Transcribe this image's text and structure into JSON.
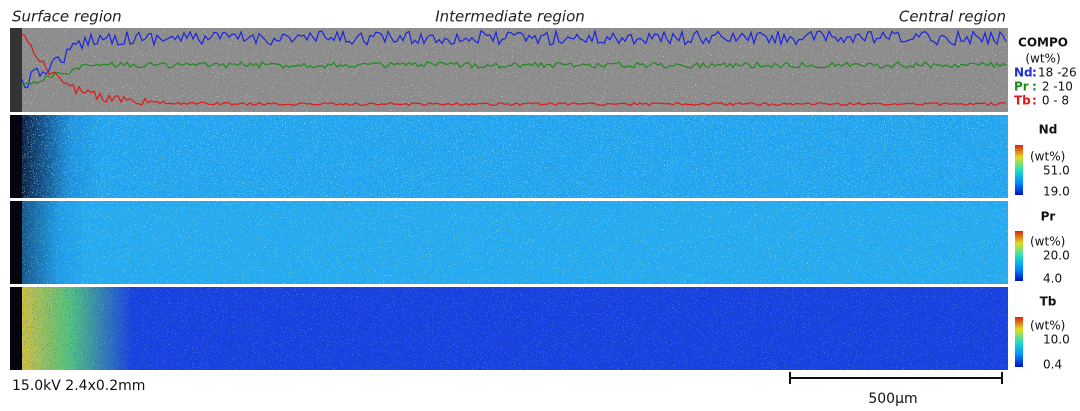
{
  "regions": [
    "Surface region",
    "Intermediate region",
    "Central region"
  ],
  "compo": {
    "title": "COMPO",
    "unit": "(wt%)",
    "rows": [
      {
        "element": "Nd",
        "range": "18 -26"
      },
      {
        "element": "Pr",
        "range": " 2 -10"
      },
      {
        "element": "Tb",
        "range": " 0 - 8"
      }
    ]
  },
  "maps": [
    {
      "element": "Nd",
      "unit": "(wt%)",
      "max": "51.0",
      "min": "19.0"
    },
    {
      "element": "Pr",
      "unit": "(wt%)",
      "max": "20.0",
      "min": "4.0"
    },
    {
      "element": "Tb",
      "unit": "(wt%)",
      "max": "10.0",
      "min": "0.4"
    }
  ],
  "footer": {
    "conditions": "15.0kV 2.4x0.2mm",
    "scale_bar": "500μm"
  }
}
